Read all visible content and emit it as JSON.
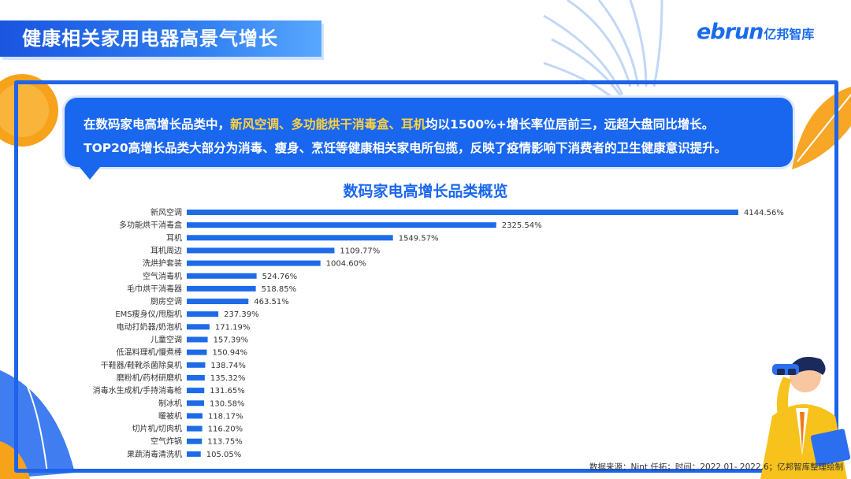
{
  "header": {
    "title": "健康相关家用电器高景气增长",
    "logo_en": "ebrun",
    "logo_cn": "亿邦智库"
  },
  "callout": {
    "line1_pre": "在数码家电高增长品类中，",
    "line1_hl": "新风空调、多功能烘干消毒盒、耳机",
    "line1_post": "均以1500%+增长率位居前三，远超大盘同比增长。",
    "line2": "TOP20高增长品类大部分为消毒、瘦身、烹饪等健康相关家电所包揽，反映了疫情影响下消费者的卫生健康意识提升。"
  },
  "footer": {
    "source": "数据来源：Nint 任拓；时间：2022.01- 2022.6；亿邦智库整理绘制"
  },
  "colors": {
    "accent": "#1a67ef",
    "bar": "#1e6be8",
    "highlight": "#ffd23f"
  },
  "chart_data": {
    "type": "bar",
    "orientation": "horizontal",
    "title": "数码家电高增长品类概览",
    "categories": [
      "新风空调",
      "多功能烘干消毒盒",
      "耳机",
      "耳机周边",
      "洗烘护套装",
      "空气消毒机",
      "毛巾烘干消毒器",
      "厨房空调",
      "EMS瘦身仪/甩脂机",
      "电动打奶器/奶泡机",
      "儿童空调",
      "低温料理机/慢煮棒",
      "干鞋器/鞋靴杀菌除臭机",
      "磨粉机/药材研磨机",
      "消毒水生成机/手持消毒枪",
      "制冰机",
      "暖被机",
      "切片机/切肉机",
      "空气炸锅",
      "果蔬消毒清洗机"
    ],
    "values": [
      4144.56,
      2325.54,
      1549.57,
      1109.77,
      1004.6,
      524.76,
      518.85,
      463.51,
      237.39,
      171.19,
      157.39,
      150.94,
      138.74,
      135.32,
      131.65,
      130.58,
      118.17,
      116.2,
      113.75,
      105.05
    ],
    "labels": [
      "4144.56%",
      "2325.54%",
      "1549.57%",
      "1109.77%",
      "1004.60%",
      "524.76%",
      "518.85%",
      "463.51%",
      "237.39%",
      "171.19%",
      "157.39%",
      "150.94%",
      "138.74%",
      "135.32%",
      "131.65%",
      "130.58%",
      "118.17%",
      "116.20%",
      "113.75%",
      "105.05%"
    ],
    "unit": "%",
    "grid": false,
    "legend": "none"
  }
}
